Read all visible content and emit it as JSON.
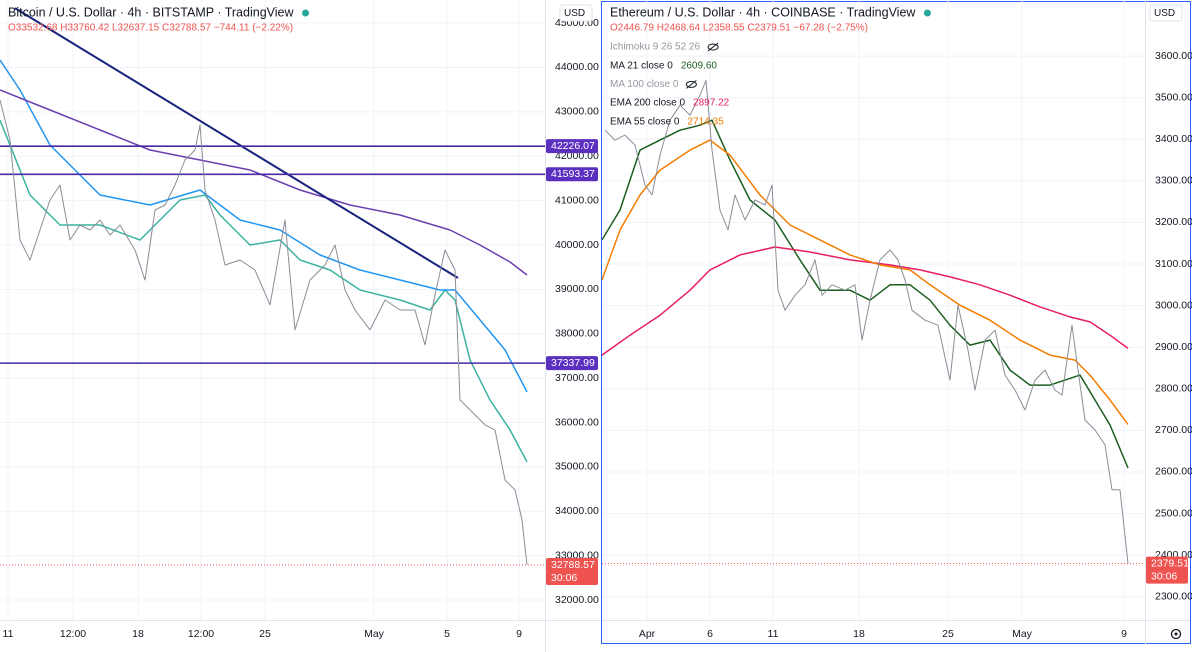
{
  "chart_data": [
    {
      "type": "line",
      "title": "Bitcoin / U.S. Dollar · 4h · BITSTAMP · TradingView",
      "ohlc": "O33532.68 H33760.42 L32637.15 C32788.57 −744.11 (−2.22%)",
      "currency": "USD",
      "xlim": [
        0,
        545
      ],
      "ylim": [
        31550,
        45520
      ],
      "grid": true,
      "xticks": [
        {
          "value": 8,
          "label": "11"
        },
        {
          "value": 73,
          "label": "12:00"
        },
        {
          "value": 138,
          "label": "18"
        },
        {
          "value": 201,
          "label": "12:00"
        },
        {
          "value": 265,
          "label": "25"
        },
        {
          "value": 374,
          "label": "May"
        },
        {
          "value": 447,
          "label": "5"
        },
        {
          "value": 519,
          "label": "9"
        }
      ],
      "yticks": [
        {
          "value": 32000,
          "label": "32000.00"
        },
        {
          "value": 33000,
          "label": "33000.00"
        },
        {
          "value": 34000,
          "label": "34000.00"
        },
        {
          "value": 35000,
          "label": "35000.00"
        },
        {
          "value": 36000,
          "label": "36000.00"
        },
        {
          "value": 37000,
          "label": "37000.00"
        },
        {
          "value": 38000,
          "label": "38000.00"
        },
        {
          "value": 39000,
          "label": "39000.00"
        },
        {
          "value": 40000,
          "label": "40000.00"
        },
        {
          "value": 41000,
          "label": "41000.00"
        },
        {
          "value": 42000,
          "label": "42000.00"
        },
        {
          "value": 43000,
          "label": "43000.00"
        },
        {
          "value": 44000,
          "label": "44000.00"
        },
        {
          "value": 45000,
          "label": "45000.00"
        }
      ],
      "price": {
        "color": "#8a8d96",
        "x": [
          0,
          10,
          20,
          30,
          40,
          50,
          60,
          70,
          80,
          90,
          100,
          110,
          120,
          135,
          145,
          155,
          165,
          175,
          185,
          195,
          200,
          205,
          215,
          225,
          240,
          255,
          270,
          285,
          295,
          310,
          325,
          335,
          345,
          355,
          370,
          385,
          400,
          415,
          425,
          435,
          445,
          455,
          460,
          470,
          485,
          495,
          505,
          515,
          522,
          527
        ],
        "values": [
          43266,
          42365,
          40113,
          39662,
          40338,
          41014,
          41351,
          40113,
          40450,
          40338,
          40563,
          40225,
          40450,
          39887,
          39212,
          40788,
          40900,
          41351,
          41914,
          42140,
          42703,
          41239,
          40563,
          39550,
          39662,
          39437,
          38649,
          40563,
          38086,
          39212,
          39550,
          40000,
          38986,
          38536,
          38086,
          38761,
          38536,
          38536,
          37748,
          38874,
          39887,
          39437,
          36509,
          36284,
          35946,
          35833,
          34707,
          34482,
          33806,
          32788.57
        ]
      },
      "series": [
        {
          "color": "#3bb3a0",
          "x": [
            0,
            30,
            60,
            100,
            140,
            150,
            180,
            205,
            220,
            250,
            280,
            300,
            330,
            360,
            400,
            430,
            445,
            455,
            470,
            490,
            510,
            527
          ],
          "values": [
            42815,
            41126,
            40450,
            40450,
            40113,
            40338,
            41014,
            41126,
            40676,
            40000,
            40113,
            39662,
            39437,
            38986,
            38761,
            38536,
            38986,
            38761,
            37410,
            36509,
            35833,
            35113
          ]
        },
        {
          "color": "#2196f3",
          "x": [
            0,
            20,
            50,
            100,
            150,
            200,
            240,
            280,
            320,
            360,
            400,
            440,
            455,
            480,
            505,
            527
          ],
          "values": [
            44167,
            43491,
            42252,
            41126,
            40901,
            41239,
            40563,
            40338,
            39775,
            39437,
            39212,
            38986,
            38986,
            38311,
            37635,
            36689
          ]
        },
        {
          "color": "#6a3fb0",
          "x": [
            0,
            50,
            100,
            150,
            200,
            250,
            300,
            350,
            400,
            450,
            480,
            510,
            527
          ],
          "values": [
            43491,
            43041,
            42590,
            42140,
            41914,
            41689,
            41239,
            40901,
            40676,
            40338,
            40000,
            39617,
            39324
          ]
        }
      ],
      "trendline": {
        "color": "#1a237e",
        "x": [
          15,
          458
        ],
        "values": [
          45338,
          39257
        ]
      },
      "levels": {
        "color": "#4a2aa3",
        "values": [
          42226.07,
          41593.37,
          37337.99
        ]
      },
      "last_price": 32788.57,
      "countdown": "30:06"
    },
    {
      "type": "line",
      "title": "Ethereum / U.S. Dollar · 4h · COINBASE · TradingView",
      "ohlc": "O2446.79 H2468.64 L2358.55 C2379.51 −67.28 (−2.75%)",
      "currency": "USD",
      "xlim": [
        0,
        543
      ],
      "ylim": [
        2244,
        3735
      ],
      "grid": true,
      "xticks": [
        {
          "value": 45,
          "label": "Apr"
        },
        {
          "value": 108,
          "label": "6"
        },
        {
          "value": 171,
          "label": "11"
        },
        {
          "value": 257,
          "label": "18"
        },
        {
          "value": 346,
          "label": "25"
        },
        {
          "value": 420,
          "label": "May"
        },
        {
          "value": 522,
          "label": "9"
        }
      ],
      "yticks": [
        {
          "value": 2300,
          "label": "2300.00"
        },
        {
          "value": 2400,
          "label": "2400.00"
        },
        {
          "value": 2500,
          "label": "2500.00"
        },
        {
          "value": 2600,
          "label": "2600.00"
        },
        {
          "value": 2700,
          "label": "2700.00"
        },
        {
          "value": 2800,
          "label": "2800.00"
        },
        {
          "value": 2900,
          "label": "2900.00"
        },
        {
          "value": 3000,
          "label": "3000.00"
        },
        {
          "value": 3100,
          "label": "3100.00"
        },
        {
          "value": 3200,
          "label": "3200.00"
        },
        {
          "value": 3300,
          "label": "3300.00"
        },
        {
          "value": 3400,
          "label": "3400.00"
        },
        {
          "value": 3500,
          "label": "3500.00"
        },
        {
          "value": 3600,
          "label": "3600.00"
        }
      ],
      "price": {
        "color": "#8a8d96",
        "x": [
          3,
          13,
          23,
          33,
          43,
          50,
          58,
          68,
          78,
          88,
          98,
          104,
          110,
          118,
          126,
          133,
          143,
          153,
          163,
          170,
          176,
          183,
          193,
          203,
          213,
          220,
          230,
          243,
          253,
          260,
          268,
          278,
          288,
          296,
          303,
          310,
          323,
          336,
          348,
          356,
          366,
          373,
          383,
          393,
          403,
          413,
          423,
          433,
          443,
          453,
          460,
          470,
          476,
          483,
          493,
          503,
          510,
          518,
          526
        ],
        "values": [
          3422,
          3398,
          3410,
          3386,
          3290,
          3266,
          3362,
          3446,
          3482,
          3458,
          3506,
          3542,
          3374,
          3230,
          3182,
          3266,
          3206,
          3254,
          3242,
          3290,
          3037,
          2989,
          3025,
          3050,
          3110,
          3025,
          3050,
          3037,
          3050,
          2917,
          3013,
          3110,
          3134,
          3110,
          3062,
          2989,
          2965,
          2953,
          2821,
          3001,
          2893,
          2797,
          2917,
          2941,
          2833,
          2797,
          2749,
          2821,
          2845,
          2797,
          2785,
          2953,
          2845,
          2725,
          2701,
          2665,
          2557,
          2557,
          2379.51
        ]
      },
      "series": [
        {
          "name": "Ichimoku 9 26 52 26",
          "hidden": true
        },
        {
          "name": "MA 21 close 0",
          "color": "#1b5e20",
          "last_label": "2609.60",
          "x": [
            0,
            18,
            38,
            58,
            78,
            98,
            110,
            128,
            148,
            173,
            198,
            218,
            248,
            268,
            288,
            308,
            328,
            348,
            368,
            388,
            408,
            428,
            448,
            463,
            478,
            493,
            508,
            526
          ],
          "values": [
            3158,
            3230,
            3374,
            3398,
            3422,
            3434,
            3446,
            3350,
            3254,
            3206,
            3110,
            3037,
            3037,
            3013,
            3050,
            3050,
            3013,
            2953,
            2905,
            2917,
            2845,
            2809,
            2809,
            2821,
            2833,
            2773,
            2713,
            2609.6
          ]
        },
        {
          "name": "MA 100 close 0",
          "hidden": true
        },
        {
          "name": "EMA 200 close 0",
          "color": "#e91e63",
          "last_label": "2897.22",
          "x": [
            0,
            28,
            58,
            88,
            108,
            138,
            173,
            208,
            248,
            288,
            318,
            348,
            378,
            408,
            438,
            468,
            488,
            508,
            526
          ],
          "values": [
            2881,
            2929,
            2977,
            3037,
            3086,
            3122,
            3141,
            3129,
            3110,
            3098,
            3086,
            3069,
            3050,
            3025,
            2997,
            2973,
            2961,
            2929,
            2897.22
          ]
        },
        {
          "name": "EMA 55 close 0",
          "color": "#f57c00",
          "last_label": "2714.35",
          "x": [
            0,
            18,
            38,
            58,
            88,
            108,
            128,
            158,
            188,
            218,
            248,
            278,
            308,
            328,
            358,
            388,
            418,
            448,
            473,
            488,
            508,
            526
          ],
          "values": [
            3062,
            3182,
            3266,
            3326,
            3374,
            3398,
            3362,
            3266,
            3194,
            3158,
            3122,
            3098,
            3086,
            3050,
            3001,
            2965,
            2917,
            2881,
            2869,
            2833,
            2773,
            2714.35
          ]
        }
      ],
      "last_price": 2379.51,
      "countdown": "30:06"
    }
  ]
}
